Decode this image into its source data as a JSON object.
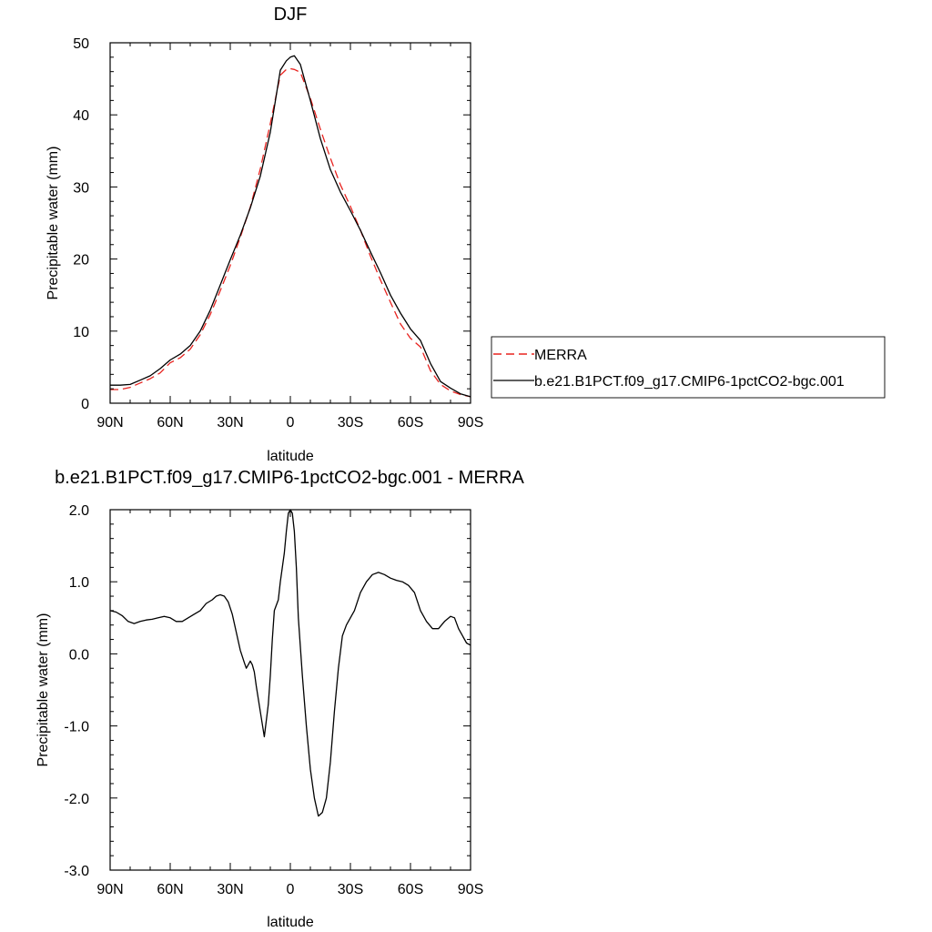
{
  "chart_data": [
    {
      "type": "line",
      "title": "DJF",
      "xlabel": "latitude",
      "ylabel": "Precipitable water (mm)",
      "xlim": [
        90,
        -90
      ],
      "ylim": [
        0,
        50
      ],
      "x_tick_values": [
        90,
        60,
        30,
        0,
        -30,
        -60,
        -90
      ],
      "x_tick_labels": [
        "90N",
        "60N",
        "30N",
        "0",
        "30S",
        "60S",
        "90S"
      ],
      "y_tick_values": [
        0,
        10,
        20,
        30,
        40,
        50
      ],
      "y_tick_labels": [
        "0",
        "10",
        "20",
        "30",
        "40",
        "50"
      ],
      "legend_position": "right",
      "series": [
        {
          "name": "MERRA",
          "color": "#e8231f",
          "dash": "dashed",
          "x": [
            90,
            85,
            80,
            75,
            70,
            65,
            60,
            55,
            50,
            45,
            40,
            35,
            30,
            25,
            20,
            15,
            10,
            5,
            2,
            0,
            -2,
            -5,
            -10,
            -15,
            -20,
            -25,
            -30,
            -35,
            -40,
            -45,
            -50,
            -55,
            -60,
            -65,
            -70,
            -75,
            -80,
            -85,
            -90
          ],
          "y": [
            1.9,
            1.9,
            2.2,
            2.8,
            3.4,
            4.2,
            5.6,
            6.3,
            7.5,
            9.5,
            12.3,
            15.6,
            19.1,
            23.0,
            27.2,
            32.5,
            38.8,
            45.5,
            46.3,
            46.4,
            46.3,
            45.9,
            42.3,
            38.0,
            34.0,
            30.3,
            27.3,
            24.0,
            20.4,
            17.1,
            14.0,
            11.0,
            9.0,
            7.8,
            4.5,
            2.6,
            1.7,
            1.2,
            0.9
          ]
        },
        {
          "name": "b.e21.B1PCT.f09_g17.CMIP6-1pctCO2-bgc.001",
          "color": "#000000",
          "dash": "solid",
          "x": [
            90,
            85,
            80,
            75,
            70,
            65,
            60,
            55,
            50,
            45,
            40,
            35,
            30,
            25,
            20,
            15,
            10,
            5,
            2,
            0,
            -2,
            -5,
            -10,
            -15,
            -20,
            -25,
            -30,
            -35,
            -40,
            -45,
            -50,
            -55,
            -60,
            -65,
            -70,
            -75,
            -80,
            -85,
            -90
          ],
          "y": [
            2.5,
            2.5,
            2.6,
            3.2,
            3.8,
            4.8,
            6.0,
            6.8,
            8.0,
            10.0,
            12.9,
            16.4,
            19.9,
            23.3,
            27.1,
            31.5,
            37.6,
            46.2,
            47.5,
            48.0,
            48.2,
            47.0,
            42.0,
            36.7,
            32.4,
            29.3,
            26.7,
            24.0,
            21.0,
            18.1,
            15.0,
            12.5,
            10.3,
            8.7,
            5.5,
            3.0,
            2.1,
            1.3,
            0.9
          ]
        }
      ]
    },
    {
      "type": "line",
      "title": "b.e21.B1PCT.f09_g17.CMIP6-1pctCO2-bgc.001 - MERRA",
      "xlabel": "latitude",
      "ylabel": "Precipitable water (mm)",
      "xlim": [
        90,
        -90
      ],
      "ylim": [
        -3.0,
        2.0
      ],
      "x_tick_values": [
        90,
        60,
        30,
        0,
        -30,
        -60,
        -90
      ],
      "x_tick_labels": [
        "90N",
        "60N",
        "30N",
        "0",
        "30S",
        "60S",
        "90S"
      ],
      "y_tick_values": [
        2.0,
        1.0,
        0.0,
        -1.0,
        -2.0,
        -3.0
      ],
      "y_tick_labels": [
        "2.0",
        "1.0",
        "0.0",
        "-1.0",
        "-2.0",
        "-3.0"
      ],
      "series": [
        {
          "color": "#000000",
          "dash": "solid",
          "x": [
            90,
            87,
            84,
            81,
            78,
            75,
            72,
            69,
            66,
            63,
            60,
            57,
            54,
            51,
            48,
            45,
            42,
            39,
            37,
            35,
            33,
            31,
            29,
            27,
            25,
            23,
            22,
            21,
            20,
            19,
            18,
            17,
            15,
            13,
            11,
            10,
            9,
            8,
            6,
            5,
            4,
            3,
            2,
            1,
            0,
            -1,
            -2,
            -3,
            -4,
            -6,
            -8,
            -10,
            -12,
            -14,
            -16,
            -18,
            -20,
            -22,
            -24,
            -26,
            -28,
            -30,
            -32,
            -35,
            -38,
            -41,
            -44,
            -47,
            -50,
            -53,
            -56,
            -59,
            -62,
            -65,
            -68,
            -71,
            -74,
            -77,
            -80,
            -82,
            -84,
            -86,
            -88,
            -90
          ],
          "y": [
            0.6,
            0.58,
            0.53,
            0.45,
            0.42,
            0.45,
            0.47,
            0.48,
            0.5,
            0.52,
            0.5,
            0.45,
            0.45,
            0.5,
            0.55,
            0.6,
            0.7,
            0.75,
            0.8,
            0.82,
            0.8,
            0.72,
            0.55,
            0.3,
            0.05,
            -0.12,
            -0.2,
            -0.15,
            -0.1,
            -0.15,
            -0.25,
            -0.45,
            -0.8,
            -1.15,
            -0.7,
            -0.3,
            0.2,
            0.6,
            0.75,
            1.0,
            1.2,
            1.4,
            1.7,
            1.95,
            2.0,
            1.95,
            1.7,
            1.2,
            0.5,
            -0.3,
            -1.0,
            -1.6,
            -2.0,
            -2.25,
            -2.2,
            -2.0,
            -1.5,
            -0.8,
            -0.2,
            0.25,
            0.4,
            0.5,
            0.6,
            0.85,
            1.0,
            1.1,
            1.13,
            1.1,
            1.05,
            1.02,
            1.0,
            0.95,
            0.85,
            0.6,
            0.45,
            0.35,
            0.35,
            0.45,
            0.52,
            0.5,
            0.35,
            0.25,
            0.15,
            0.12
          ]
        }
      ]
    }
  ]
}
